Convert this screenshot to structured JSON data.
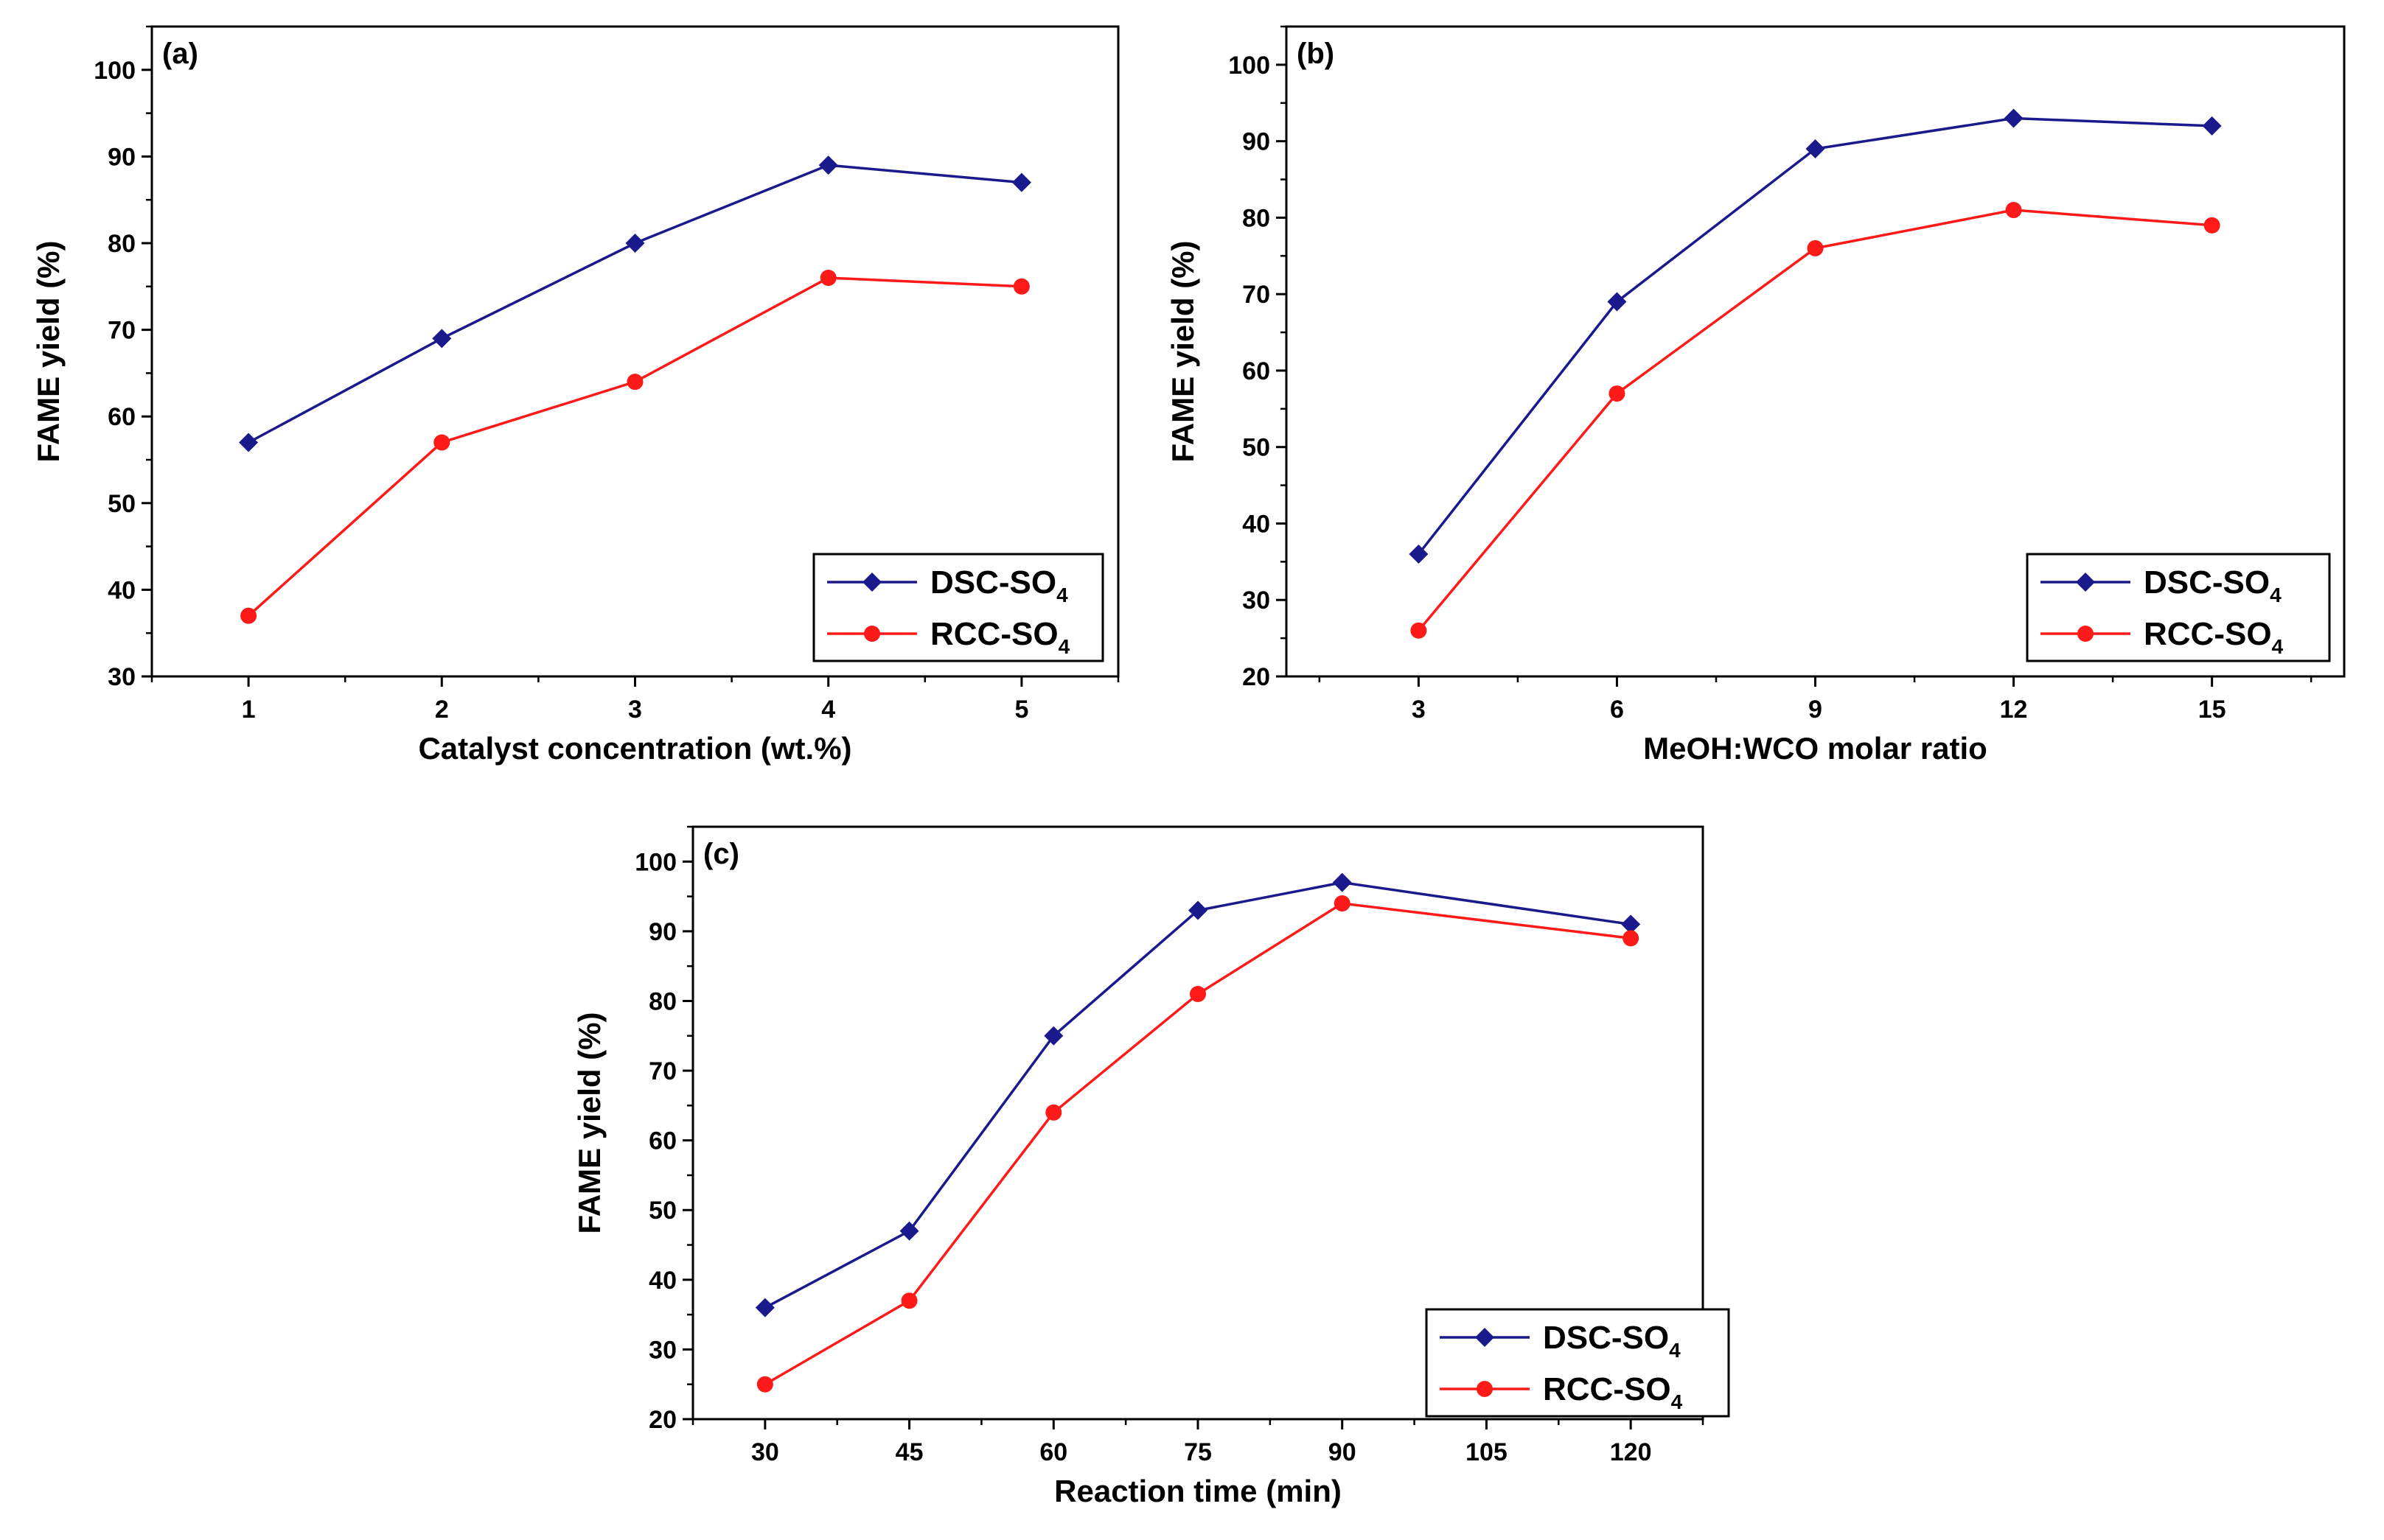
{
  "chart_data": [
    {
      "type": "line",
      "panel_label": "(a)",
      "xlabel": "Catalyst concentration (wt.%)",
      "ylabel": "FAME yield (%)",
      "x": [
        1,
        2,
        3,
        4,
        5
      ],
      "x_tick_labels": [
        "1",
        "2",
        "3",
        "4",
        "5"
      ],
      "xlim": [
        0.5,
        5.5
      ],
      "ylim": [
        30,
        105
      ],
      "y_tick_labels": [
        "30",
        "40",
        "50",
        "60",
        "70",
        "80",
        "90",
        "100"
      ],
      "legend_position": "bottom-right",
      "series": [
        {
          "name": "DSC-SO",
          "subscript": "4",
          "color": "#1a1a8c",
          "marker": "diamond",
          "values": [
            57,
            69,
            80,
            89,
            87
          ]
        },
        {
          "name": "RCC-SO",
          "subscript": "4",
          "color": "#ff1a1a",
          "marker": "circle",
          "values": [
            37,
            57,
            64,
            76,
            75
          ]
        }
      ]
    },
    {
      "type": "line",
      "panel_label": "(b)",
      "xlabel": "MeOH:WCO molar ratio",
      "ylabel": "FAME yield (%)",
      "x": [
        3,
        6,
        9,
        12,
        15
      ],
      "x_tick_labels": [
        "3",
        "6",
        "9",
        "12",
        "15"
      ],
      "xlim": [
        1,
        17
      ],
      "ylim": [
        20,
        105
      ],
      "y_tick_labels": [
        "20",
        "30",
        "40",
        "50",
        "60",
        "70",
        "80",
        "90",
        "100"
      ],
      "legend_position": "bottom-right",
      "series": [
        {
          "name": "DSC-SO",
          "subscript": "4",
          "color": "#1a1a8c",
          "marker": "diamond",
          "values": [
            36,
            69,
            89,
            93,
            92
          ]
        },
        {
          "name": "RCC-SO",
          "subscript": "4",
          "color": "#ff1a1a",
          "marker": "circle",
          "values": [
            26,
            57,
            76,
            81,
            79
          ]
        }
      ]
    },
    {
      "type": "line",
      "panel_label": "(c)",
      "xlabel": "Reaction time (min)",
      "ylabel": "FAME yield (%)",
      "x": [
        30,
        45,
        60,
        75,
        90,
        120
      ],
      "x_tick_labels": [
        "30",
        "45",
        "60",
        "75",
        "90",
        "105",
        "120"
      ],
      "x_tick_values": [
        30,
        45,
        60,
        75,
        90,
        105,
        120
      ],
      "xlim": [
        22.5,
        127.5
      ],
      "ylim": [
        20,
        105
      ],
      "y_tick_labels": [
        "20",
        "30",
        "40",
        "50",
        "60",
        "70",
        "80",
        "90",
        "100"
      ],
      "legend_position": "bottom-right",
      "series": [
        {
          "name": "DSC-SO",
          "subscript": "4",
          "color": "#1a1a8c",
          "marker": "diamond",
          "values": [
            36,
            47,
            75,
            93,
            97,
            91
          ]
        },
        {
          "name": "RCC-SO",
          "subscript": "4",
          "color": "#ff1a1a",
          "marker": "circle",
          "values": [
            25,
            37,
            64,
            81,
            94,
            89
          ]
        }
      ]
    }
  ]
}
